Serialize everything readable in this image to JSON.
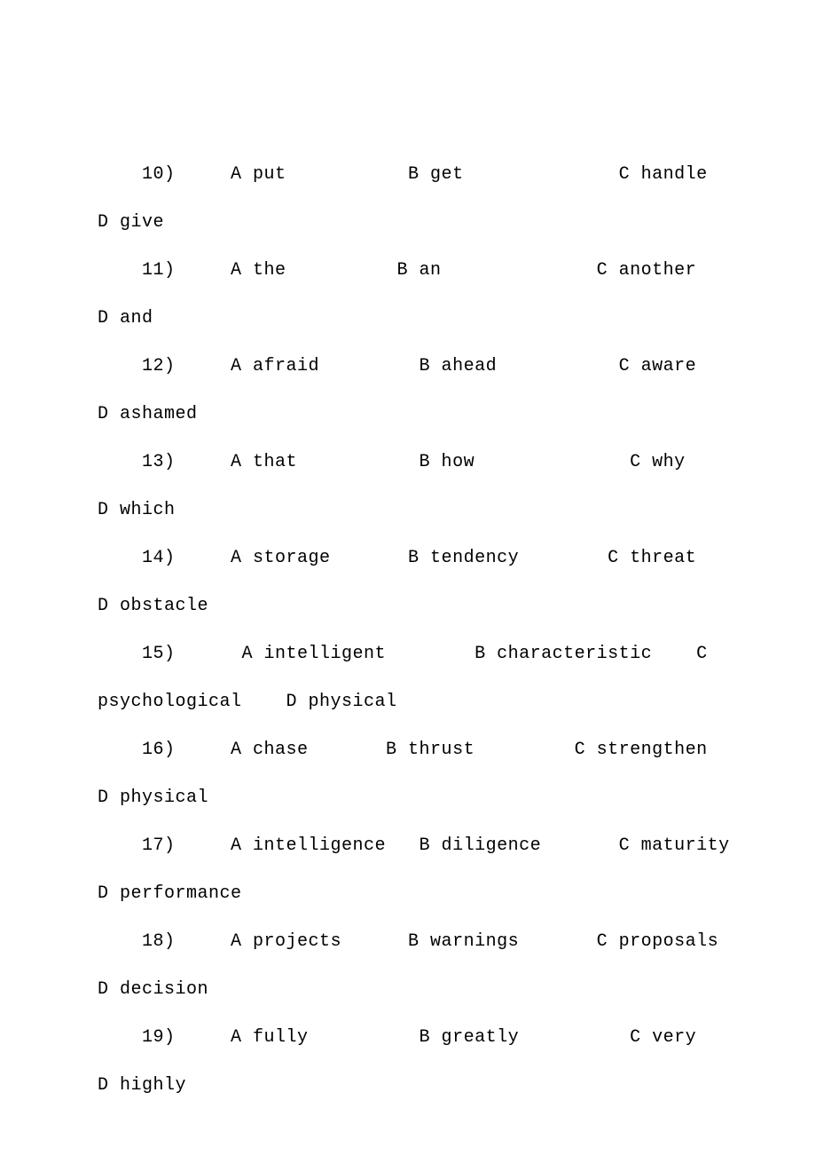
{
  "lines": [
    "    10)     A put           B get              C handle",
    "D give",
    "    11)     A the          B an              C another",
    "D and",
    "    12)     A afraid         B ahead           C aware",
    "D ashamed",
    "    13)     A that           B how              C why",
    "D which",
    "    14)     A storage       B tendency        C threat",
    "D obstacle",
    "    15)      A intelligent        B characteristic    C",
    "psychological    D physical",
    "    16)     A chase       B thrust         C strengthen",
    "D physical",
    "    17)     A intelligence   B diligence       C maturity",
    "D performance",
    "    18)     A projects      B warnings       C proposals",
    "D decision",
    "    19)     A fully          B greatly          C very",
    "D highly"
  ]
}
